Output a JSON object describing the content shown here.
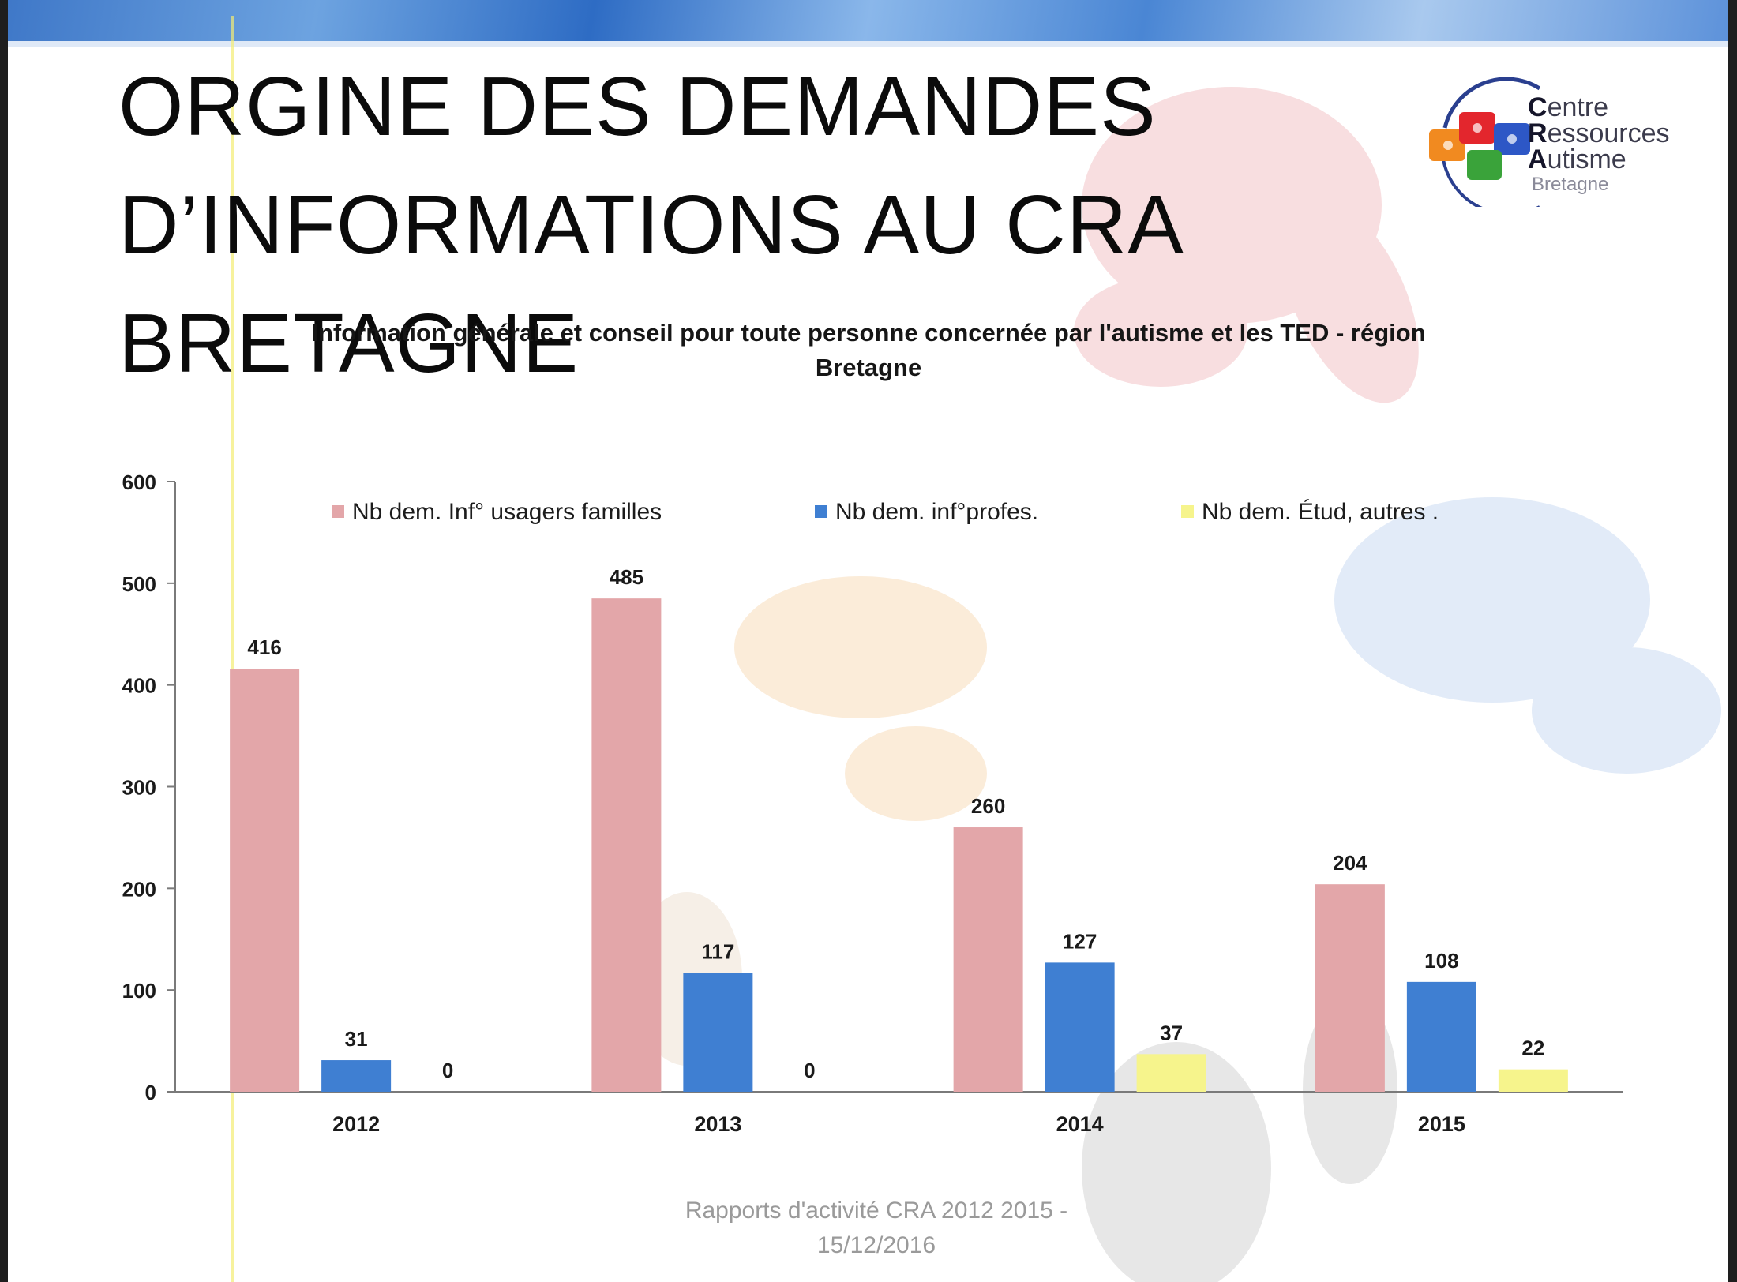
{
  "slide": {
    "title_lines": [
      "ORGINE DES DEMANDES",
      "D’INFORMATIONS AU CRA BRETAGNE"
    ],
    "footer_lines": [
      "Rapports d'activité CRA 2012 2015 -",
      "15/12/2016"
    ]
  },
  "logo": {
    "line1_initial": "C",
    "line1_rest": "entre",
    "line2_initial": "R",
    "line2_rest": "essources",
    "line3_initial": "A",
    "line3_rest": "utisme",
    "region": "Bretagne"
  },
  "colors": {
    "usagers": "#e3a6a9",
    "profes": "#3f7fd2",
    "etud": "#f6f48c",
    "axis": "#7a7a7a",
    "text": "#1a1a1a"
  },
  "chart_data": {
    "type": "bar",
    "title": "Information générale et conseil pour toute personne concernée par l'autisme et les TED - région Bretagne",
    "title_lines": [
      "Information générale et conseil pour toute personne concernée par l'autisme et les TED - région",
      "Bretagne"
    ],
    "categories": [
      "2012",
      "2013",
      "2014",
      "2015"
    ],
    "series": [
      {
        "name": "Nb dem. Inf° usagers familles",
        "values": [
          416,
          485,
          260,
          204
        ]
      },
      {
        "name": "Nb dem. inf°profes.",
        "values": [
          31,
          117,
          127,
          108
        ]
      },
      {
        "name": "Nb dem. Étud, autres .",
        "values": [
          0,
          0,
          37,
          22
        ]
      }
    ],
    "ylim": [
      0,
      600
    ],
    "yticks": [
      0,
      100,
      200,
      300,
      400,
      500,
      600
    ],
    "xlabel": "",
    "ylabel": "",
    "legend": "top",
    "grid": false,
    "data_labels": true
  }
}
